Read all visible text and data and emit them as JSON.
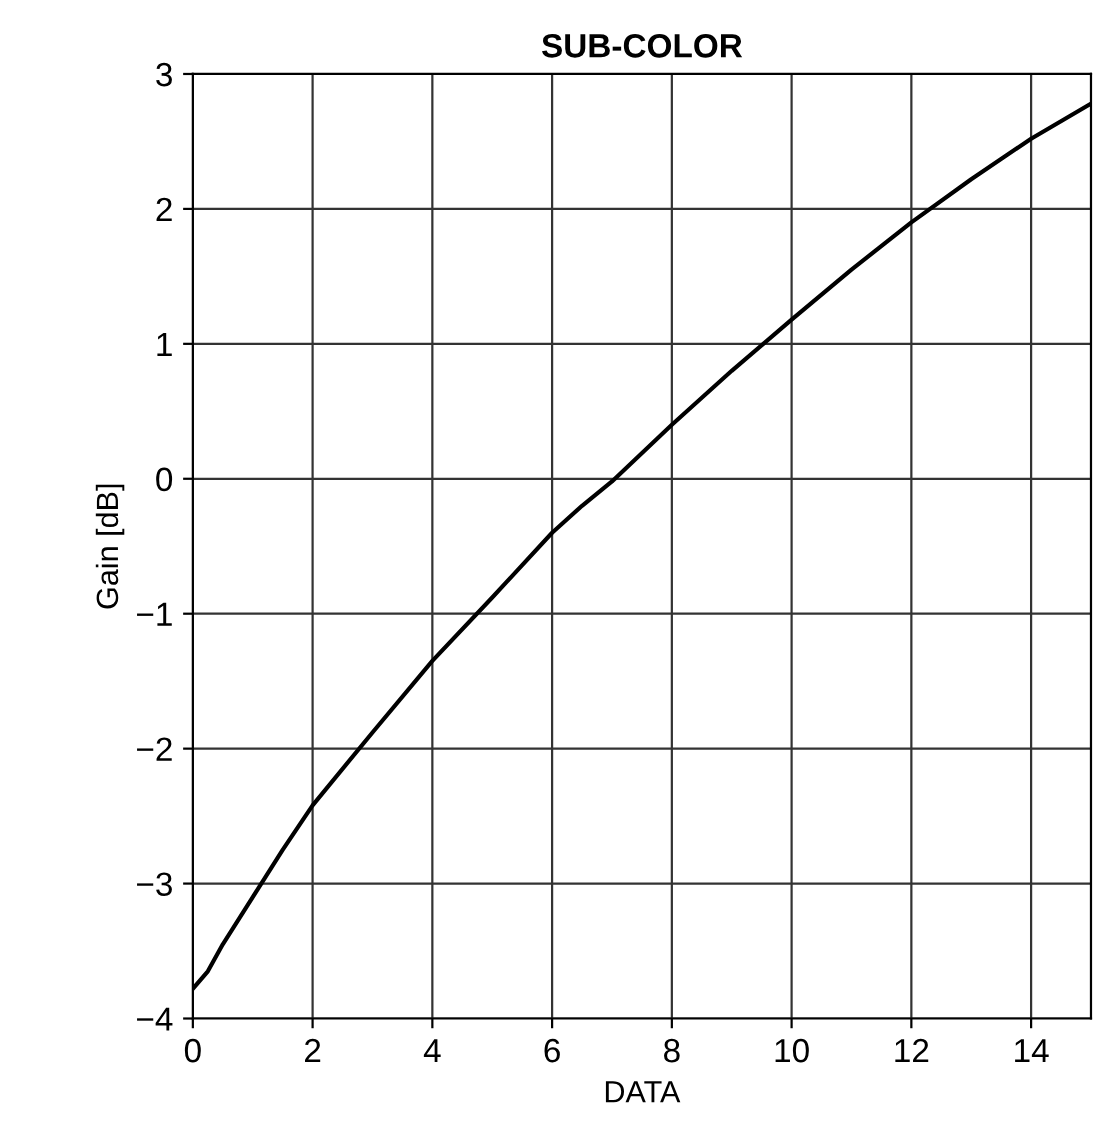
{
  "chart_data": {
    "type": "line",
    "title": "SUB-COLOR",
    "xlabel": "DATA",
    "ylabel": "Gain [dB]",
    "x": [
      0,
      0.25,
      0.5,
      1,
      1.5,
      2,
      3,
      4,
      5,
      6,
      6.5,
      7,
      8,
      9,
      10,
      11,
      12,
      13,
      14,
      15
    ],
    "series": [
      {
        "color": "#000000",
        "values": [
          -3.78,
          -3.65,
          -3.45,
          -3.1,
          -2.75,
          -2.42,
          -1.88,
          -1.35,
          -0.88,
          -0.4,
          -0.2,
          -0.02,
          0.4,
          0.8,
          1.18,
          1.55,
          1.9,
          2.22,
          2.52,
          2.78
        ]
      }
    ],
    "xlim": [
      0,
      15
    ],
    "ylim": [
      -4,
      3
    ],
    "xticks": [
      0,
      2,
      4,
      6,
      8,
      10,
      12,
      14
    ],
    "yticks": [
      3,
      2,
      1,
      0,
      {
        "value": -1,
        "label": "−1"
      },
      {
        "value": -2,
        "label": "−2"
      },
      {
        "value": -3,
        "label": "−3"
      },
      {
        "value": -4,
        "label": "−4"
      }
    ],
    "grid": true,
    "line_style": "solid",
    "marker": "none"
  }
}
